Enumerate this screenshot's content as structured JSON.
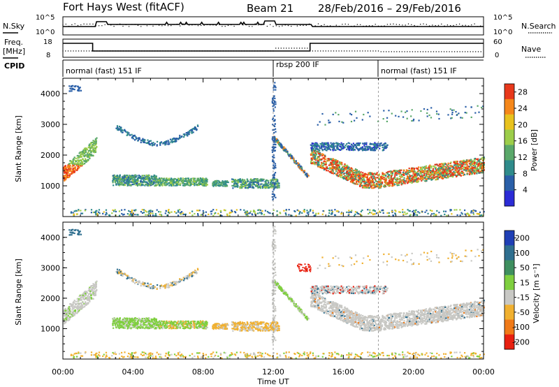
{
  "header": {
    "station": "Fort Hays West (fitACF)",
    "beam": "Beam 21",
    "date_range": "28/Feb/2016 – 29/Feb/2016"
  },
  "top_panels": {
    "nsky_label": "N.Sky",
    "nsky_ticks": [
      "10^5",
      "10^0"
    ],
    "nsearch_label": "N.Search",
    "nsearch_ticks": [
      "10^5",
      "10^0"
    ],
    "freq_label": "Freq.",
    "freq_unit": "[MHz]",
    "freq_ticks": [
      "18",
      "8"
    ],
    "nave_label": "Nave",
    "nave_ticks": [
      "60",
      "0"
    ],
    "cpid_label": "CPID",
    "cpid_segments": [
      {
        "label": "normal (fast) 151 IF",
        "start_hour": 0
      },
      {
        "label": "rbsp 200 IF",
        "start_hour": 12
      },
      {
        "label": "normal (fast) 151 IF",
        "start_hour": 18
      }
    ]
  },
  "chart_data": [
    {
      "type": "heatmap",
      "name": "power",
      "xlabel": "",
      "ylabel": "Slant Range [km]",
      "xlim": [
        0,
        24
      ],
      "ylim": [
        0,
        4500
      ],
      "yticks": [
        "1000",
        "2000",
        "3000",
        "4000"
      ],
      "colorbar_label": "Power [dB]",
      "colorbar_ticks": [
        "4",
        "8",
        "12",
        "16",
        "20",
        "24",
        "28"
      ],
      "colorbar_range": [
        0,
        30
      ],
      "colors": [
        "#2b2bd6",
        "#2a5fa8",
        "#2f8b8b",
        "#5aa86a",
        "#9ccd4a",
        "#e8c21e",
        "#f5871a",
        "#e8381b"
      ]
    },
    {
      "type": "heatmap",
      "name": "velocity",
      "xlabel": "Time UT",
      "ylabel": "Slant Range [km]",
      "xlim": [
        0,
        24
      ],
      "ylim": [
        0,
        4500
      ],
      "xticks": [
        "00:00",
        "04:00",
        "08:00",
        "12:00",
        "16:00",
        "20:00",
        "00:00"
      ],
      "yticks": [
        "1000",
        "2000",
        "3000",
        "4000"
      ],
      "colorbar_label": "Velocity [m s⁻¹]",
      "colorbar_ticks": [
        "200",
        "100",
        "50",
        "15",
        "-15",
        "-50",
        "-100",
        "-200"
      ],
      "colors": [
        "#1f3fb5",
        "#2f6f8f",
        "#3f8f5f",
        "#7fcf3f",
        "#c8c8c4",
        "#f0b030",
        "#f07a18",
        "#e82010"
      ]
    }
  ]
}
